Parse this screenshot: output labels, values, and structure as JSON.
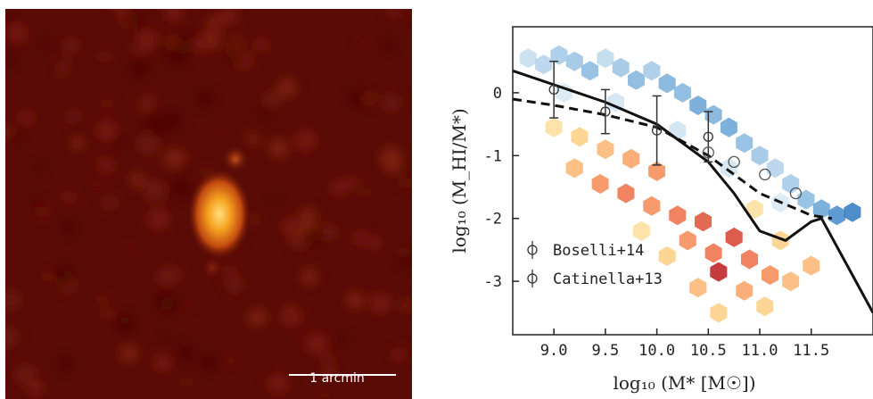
{
  "image_panel": {
    "scalebar_label": "1 arcmin",
    "colors": {
      "background": "#5a0b06",
      "blob": "#f5a020",
      "core": "#ffd25a"
    }
  },
  "chart_data": {
    "type": "scatter",
    "xlabel": "log₁₀ (M* [M☉])",
    "ylabel": "log₁₀ (M_HI/M*)",
    "x_ticks": [
      "9.0",
      "9.5",
      "10.0",
      "10.5",
      "11.0",
      "11.5"
    ],
    "y_ticks": [
      "0",
      "-1",
      "-2",
      "-3"
    ],
    "xlim": [
      8.6,
      12.1
    ],
    "ylim": [
      -3.85,
      1.05
    ],
    "grid": false,
    "legend": {
      "position": "bottom-left",
      "entries": [
        "Boselli+14",
        "Catinella+13"
      ]
    },
    "series": [
      {
        "style": "solid-line",
        "color": "#111111",
        "x": [
          8.6,
          9.5,
          10.0,
          10.25,
          10.5,
          10.75,
          11.0,
          11.25,
          11.5,
          11.6,
          11.8,
          12.1
        ],
        "y": [
          0.35,
          -0.15,
          -0.5,
          -0.8,
          -1.1,
          -1.6,
          -2.2,
          -2.35,
          -2.05,
          -2.0,
          -2.6,
          -3.5
        ]
      },
      {
        "style": "dashed-line",
        "color": "#111111",
        "x": [
          8.6,
          9.0,
          9.5,
          10.0,
          10.5,
          11.0,
          11.5,
          11.7
        ],
        "y": [
          -0.1,
          -0.2,
          -0.35,
          -0.55,
          -1.0,
          -1.6,
          -1.95,
          -2.0
        ]
      },
      {
        "style": "errorbar",
        "color": "#333333",
        "x": [
          9.0,
          9.5,
          10.0,
          10.5
        ],
        "y": [
          0.05,
          -0.3,
          -0.6,
          -0.7
        ],
        "err": [
          0.45,
          0.35,
          0.55,
          0.4
        ]
      },
      {
        "style": "open-markers",
        "color": "#555555",
        "x": [
          10.5,
          10.75,
          11.05,
          11.35
        ],
        "y": [
          -0.95,
          -1.1,
          -1.3,
          -1.6
        ]
      }
    ],
    "hexbin_points": [
      {
        "x": 8.75,
        "y": 0.55,
        "c": "#c8dff0"
      },
      {
        "x": 8.9,
        "y": 0.45,
        "c": "#b6d4ec"
      },
      {
        "x": 9.05,
        "y": 0.6,
        "c": "#a6cbe8"
      },
      {
        "x": 9.2,
        "y": 0.5,
        "c": "#9ec6e6"
      },
      {
        "x": 9.35,
        "y": 0.35,
        "c": "#8ebde2"
      },
      {
        "x": 9.5,
        "y": 0.55,
        "c": "#c0dbee"
      },
      {
        "x": 9.65,
        "y": 0.4,
        "c": "#9ec6e6"
      },
      {
        "x": 9.8,
        "y": 0.2,
        "c": "#86b8df"
      },
      {
        "x": 9.95,
        "y": 0.35,
        "c": "#a6cbe8"
      },
      {
        "x": 10.1,
        "y": 0.15,
        "c": "#7fb2dc"
      },
      {
        "x": 10.25,
        "y": 0.0,
        "c": "#86b8df"
      },
      {
        "x": 10.4,
        "y": -0.2,
        "c": "#6fa8d8"
      },
      {
        "x": 10.55,
        "y": -0.35,
        "c": "#7fb2dc"
      },
      {
        "x": 10.7,
        "y": -0.55,
        "c": "#6fa8d8"
      },
      {
        "x": 10.85,
        "y": -0.8,
        "c": "#8ebde2"
      },
      {
        "x": 11.0,
        "y": -1.0,
        "c": "#9ec6e6"
      },
      {
        "x": 11.15,
        "y": -1.2,
        "c": "#b6d4ec"
      },
      {
        "x": 11.3,
        "y": -1.45,
        "c": "#a6cbe8"
      },
      {
        "x": 11.45,
        "y": -1.7,
        "c": "#8ebde2"
      },
      {
        "x": 11.6,
        "y": -1.85,
        "c": "#6fa8d8"
      },
      {
        "x": 11.75,
        "y": -1.95,
        "c": "#4f8fcd"
      },
      {
        "x": 11.9,
        "y": -1.9,
        "c": "#3b7fc4"
      },
      {
        "x": 9.1,
        "y": 0.0,
        "c": "#d8e9f3"
      },
      {
        "x": 9.6,
        "y": -0.15,
        "c": "#d4e6f2"
      },
      {
        "x": 10.2,
        "y": -0.6,
        "c": "#cfe3f0"
      },
      {
        "x": 10.7,
        "y": -1.2,
        "c": "#d4e6f2"
      },
      {
        "x": 11.2,
        "y": -1.75,
        "c": "#d8e9f3"
      },
      {
        "x": 9.0,
        "y": -0.55,
        "c": "#fde0a0"
      },
      {
        "x": 9.25,
        "y": -0.7,
        "c": "#fdd08a"
      },
      {
        "x": 9.5,
        "y": -0.9,
        "c": "#fcb878"
      },
      {
        "x": 9.75,
        "y": -1.05,
        "c": "#fba56a"
      },
      {
        "x": 10.0,
        "y": -1.25,
        "c": "#f6905c"
      },
      {
        "x": 9.2,
        "y": -1.2,
        "c": "#fcb878"
      },
      {
        "x": 9.45,
        "y": -1.45,
        "c": "#f6905c"
      },
      {
        "x": 9.7,
        "y": -1.6,
        "c": "#ee7650"
      },
      {
        "x": 9.95,
        "y": -1.8,
        "c": "#f6905c"
      },
      {
        "x": 10.2,
        "y": -1.95,
        "c": "#ee7650"
      },
      {
        "x": 10.45,
        "y": -2.05,
        "c": "#e05a40"
      },
      {
        "x": 10.3,
        "y": -2.35,
        "c": "#f6905c"
      },
      {
        "x": 10.55,
        "y": -2.55,
        "c": "#ee7650"
      },
      {
        "x": 10.75,
        "y": -2.3,
        "c": "#d84a3a"
      },
      {
        "x": 10.6,
        "y": -2.85,
        "c": "#c0262a"
      },
      {
        "x": 10.9,
        "y": -2.65,
        "c": "#ee7650"
      },
      {
        "x": 11.1,
        "y": -2.9,
        "c": "#f6905c"
      },
      {
        "x": 10.85,
        "y": -3.15,
        "c": "#fba56a"
      },
      {
        "x": 11.3,
        "y": -3.0,
        "c": "#fcb878"
      },
      {
        "x": 10.4,
        "y": -3.1,
        "c": "#fcb878"
      },
      {
        "x": 11.05,
        "y": -3.4,
        "c": "#fdd08a"
      },
      {
        "x": 10.6,
        "y": -3.5,
        "c": "#fdd08a"
      },
      {
        "x": 11.5,
        "y": -2.75,
        "c": "#fcb878"
      },
      {
        "x": 10.1,
        "y": -2.6,
        "c": "#fdd08a"
      },
      {
        "x": 9.85,
        "y": -2.2,
        "c": "#fde0a0"
      },
      {
        "x": 10.95,
        "y": -1.85,
        "c": "#fde0a0"
      },
      {
        "x": 11.2,
        "y": -2.35,
        "c": "#fdd08a"
      }
    ]
  }
}
